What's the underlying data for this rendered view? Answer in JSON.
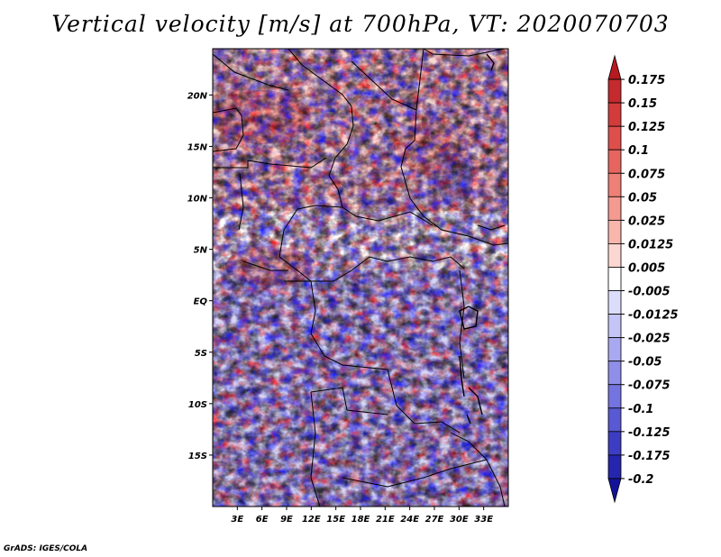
{
  "title": "Vertical velocity [m/s] at 700hPa, VT: 2020070703",
  "credit": "GrADS: IGES/COLA",
  "map": {
    "lon_range": [
      0,
      36
    ],
    "lat_range": [
      -20,
      24.5
    ],
    "x_tick_labels": [
      {
        "lon": 3,
        "label": "3E"
      },
      {
        "lon": 6,
        "label": "6E"
      },
      {
        "lon": 9,
        "label": "9E"
      },
      {
        "lon": 12,
        "label": "12E"
      },
      {
        "lon": 15,
        "label": "15E"
      },
      {
        "lon": 18,
        "label": "18E"
      },
      {
        "lon": 21,
        "label": "21E"
      },
      {
        "lon": 24,
        "label": "24E"
      },
      {
        "lon": 27,
        "label": "27E"
      },
      {
        "lon": 30,
        "label": "30E"
      },
      {
        "lon": 33,
        "label": "33E"
      }
    ],
    "y_tick_labels": [
      {
        "lat": 20,
        "label": "20N"
      },
      {
        "lat": 15,
        "label": "15N"
      },
      {
        "lat": 10,
        "label": "10N"
      },
      {
        "lat": 5,
        "label": "5N"
      },
      {
        "lat": 0,
        "label": "EQ"
      },
      {
        "lat": -5,
        "label": "5S"
      },
      {
        "lat": -10,
        "label": "10S"
      },
      {
        "lat": -15,
        "label": "15S"
      }
    ]
  },
  "colorbar": {
    "labels": [
      "0.175",
      "0.15",
      "0.125",
      "0.1",
      "0.075",
      "0.05",
      "0.025",
      "0.0125",
      "0.005",
      "-0.005",
      "-0.0125",
      "-0.025",
      "-0.05",
      "-0.075",
      "-0.1",
      "-0.125",
      "-0.175",
      "-0.2"
    ],
    "colors": [
      "#b41a1f",
      "#c42a2e",
      "#d33c3b",
      "#de4f4c",
      "#e6665f",
      "#ee8077",
      "#f49a90",
      "#f8b6ad",
      "#fcd6d0",
      "#ffffff",
      "#dcdcfb",
      "#c4c4f7",
      "#a9a9f1",
      "#8f8fe9",
      "#7474e0",
      "#5959d4",
      "#3d3dc4",
      "#2525ad",
      "#12129a"
    ]
  }
}
